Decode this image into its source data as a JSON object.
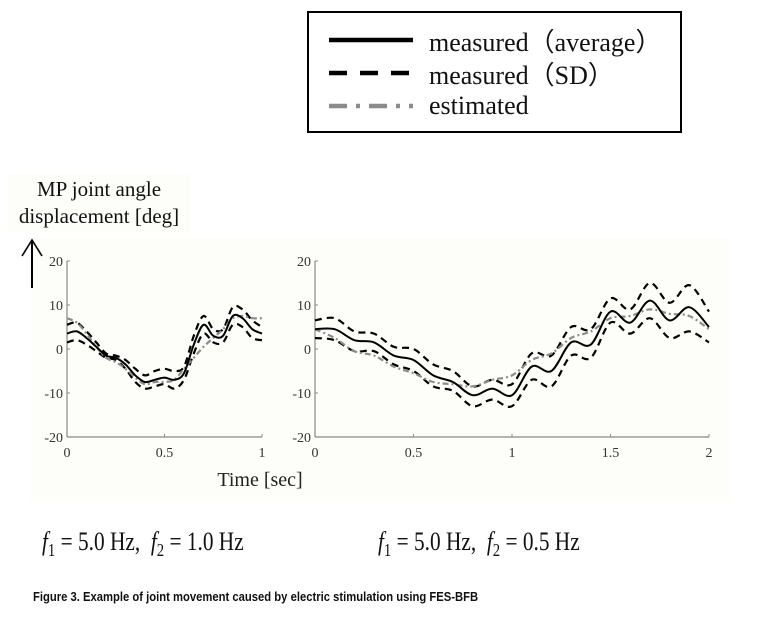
{
  "legend": {
    "items": [
      {
        "label": "measured（average）",
        "style": "solid",
        "color": "#000000"
      },
      {
        "label": "measured（SD）",
        "style": "dashed",
        "color": "#000000"
      },
      {
        "label": "estimated",
        "style": "dash-dot",
        "color": "#8c8c8c"
      }
    ]
  },
  "ylabel_lines": [
    "MP joint angle",
    "displacement [deg]"
  ],
  "xlabel": "Time [sec]",
  "conditions": [
    {
      "f1_symbol": "f",
      "f1_sub": "1",
      "f1_value": " = 5.0 Hz,",
      "f2_symbol": "f",
      "f2_sub": "2",
      "f2_value": " = 1.0 Hz"
    },
    {
      "f1_symbol": "f",
      "f1_sub": "1",
      "f1_value": " = 5.0 Hz,",
      "f2_symbol": "f",
      "f2_sub": "2",
      "f2_value": " = 0.5 Hz"
    }
  ],
  "caption": "Figure 3. Example of joint movement caused by electric stimulation using FES-BFB",
  "chart_data": [
    {
      "type": "line",
      "title": "f1 = 5.0 Hz, f2 = 1.0 Hz",
      "xlabel": "Time [sec]",
      "ylabel": "MP joint angle displacement [deg]",
      "xlim": [
        0,
        1
      ],
      "ylim": [
        -20,
        20
      ],
      "xticks": [
        0,
        0.5,
        1
      ],
      "xtick_labels": [
        "0",
        "0.5",
        "1"
      ],
      "yticks": [
        -20,
        -10,
        0,
        10,
        20
      ],
      "ytick_labels": [
        "-20",
        "-10",
        "0",
        "10",
        "20"
      ],
      "grid": false,
      "x": [
        0,
        0.05,
        0.1,
        0.15,
        0.2,
        0.25,
        0.3,
        0.35,
        0.4,
        0.45,
        0.5,
        0.55,
        0.6,
        0.65,
        0.7,
        0.75,
        0.8,
        0.85,
        0.9,
        0.95,
        1.0
      ],
      "series": [
        {
          "name": "measured (SD) upper",
          "style": "dashed",
          "color": "#000000",
          "values": [
            5.5,
            6,
            4,
            1.5,
            -1,
            -1.5,
            -2.5,
            -4.5,
            -6,
            -5,
            -4.5,
            -5,
            -4,
            3,
            7.5,
            4.5,
            4.5,
            9.5,
            9,
            6.5,
            5
          ]
        },
        {
          "name": "measured (SD) lower",
          "style": "dashed",
          "color": "#000000",
          "values": [
            1.5,
            2,
            1,
            -0.5,
            -2,
            -2.5,
            -4.5,
            -7.5,
            -9,
            -8.5,
            -8,
            -9,
            -7,
            -1,
            3.5,
            1.5,
            1.5,
            5.5,
            5,
            2.5,
            2
          ]
        },
        {
          "name": "estimated",
          "style": "dash-dot",
          "color": "#8c8c8c",
          "values": [
            7,
            6,
            3.5,
            0.5,
            -2,
            -3,
            -4.5,
            -6.5,
            -8,
            -7.5,
            -7.5,
            -7,
            -4.5,
            -2,
            0.5,
            2.5,
            4.5,
            7,
            7.5,
            7,
            7
          ]
        },
        {
          "name": "measured (average)",
          "style": "solid",
          "color": "#000000",
          "values": [
            3.5,
            4,
            2.5,
            0.5,
            -1.5,
            -2,
            -3.5,
            -6,
            -7.5,
            -7,
            -6.5,
            -7,
            -5.5,
            1,
            5.5,
            3,
            3,
            7.5,
            7,
            4.5,
            3.5
          ]
        }
      ]
    },
    {
      "type": "line",
      "title": "f1 = 5.0 Hz, f2 = 0.5 Hz",
      "xlabel": "Time [sec]",
      "ylabel": "MP joint angle displacement [deg]",
      "xlim": [
        0,
        2
      ],
      "ylim": [
        -20,
        20
      ],
      "xticks": [
        0,
        0.5,
        1,
        1.5,
        2
      ],
      "xtick_labels": [
        "0",
        "0.5",
        "1",
        "1.5",
        "2"
      ],
      "yticks": [
        -20,
        -10,
        0,
        10,
        20
      ],
      "ytick_labels": [
        "-20",
        "-10",
        "0",
        "10",
        "20"
      ],
      "grid": false,
      "x": [
        0,
        0.1,
        0.2,
        0.3,
        0.4,
        0.5,
        0.6,
        0.7,
        0.8,
        0.9,
        1.0,
        1.1,
        1.2,
        1.3,
        1.4,
        1.5,
        1.6,
        1.7,
        1.8,
        1.9,
        2.0
      ],
      "series": [
        {
          "name": "measured (SD) upper",
          "style": "dashed",
          "color": "#000000",
          "values": [
            6.5,
            7,
            4,
            3.5,
            0.5,
            0,
            -3.5,
            -5,
            -8.5,
            -7,
            -8,
            -1,
            -1.5,
            5,
            4.5,
            11.5,
            9,
            15,
            10.5,
            14.5,
            8.5
          ]
        },
        {
          "name": "measured (SD) lower",
          "style": "dashed",
          "color": "#000000",
          "values": [
            2.5,
            2,
            -0.5,
            -0.5,
            -3.5,
            -5,
            -8.5,
            -9.5,
            -13,
            -11.5,
            -13,
            -7,
            -8.5,
            -1.5,
            -2,
            6,
            3.5,
            7,
            2.5,
            4,
            1.5
          ]
        },
        {
          "name": "estimated",
          "style": "dash-dot",
          "color": "#8c8c8c",
          "values": [
            4.5,
            2.5,
            -0.5,
            -1.5,
            -4,
            -5.5,
            -7.5,
            -8,
            -8.5,
            -7,
            -6,
            -2.5,
            -1,
            2.5,
            4,
            7,
            7.5,
            9,
            8,
            7.5,
            4.5
          ]
        },
        {
          "name": "measured (average)",
          "style": "solid",
          "color": "#000000",
          "values": [
            4.5,
            4.5,
            2,
            1.5,
            -1.5,
            -2.5,
            -6,
            -7.5,
            -10.5,
            -9,
            -10.5,
            -4,
            -5,
            1.5,
            1,
            8.5,
            6,
            11,
            6.5,
            9.5,
            5
          ]
        }
      ]
    }
  ]
}
